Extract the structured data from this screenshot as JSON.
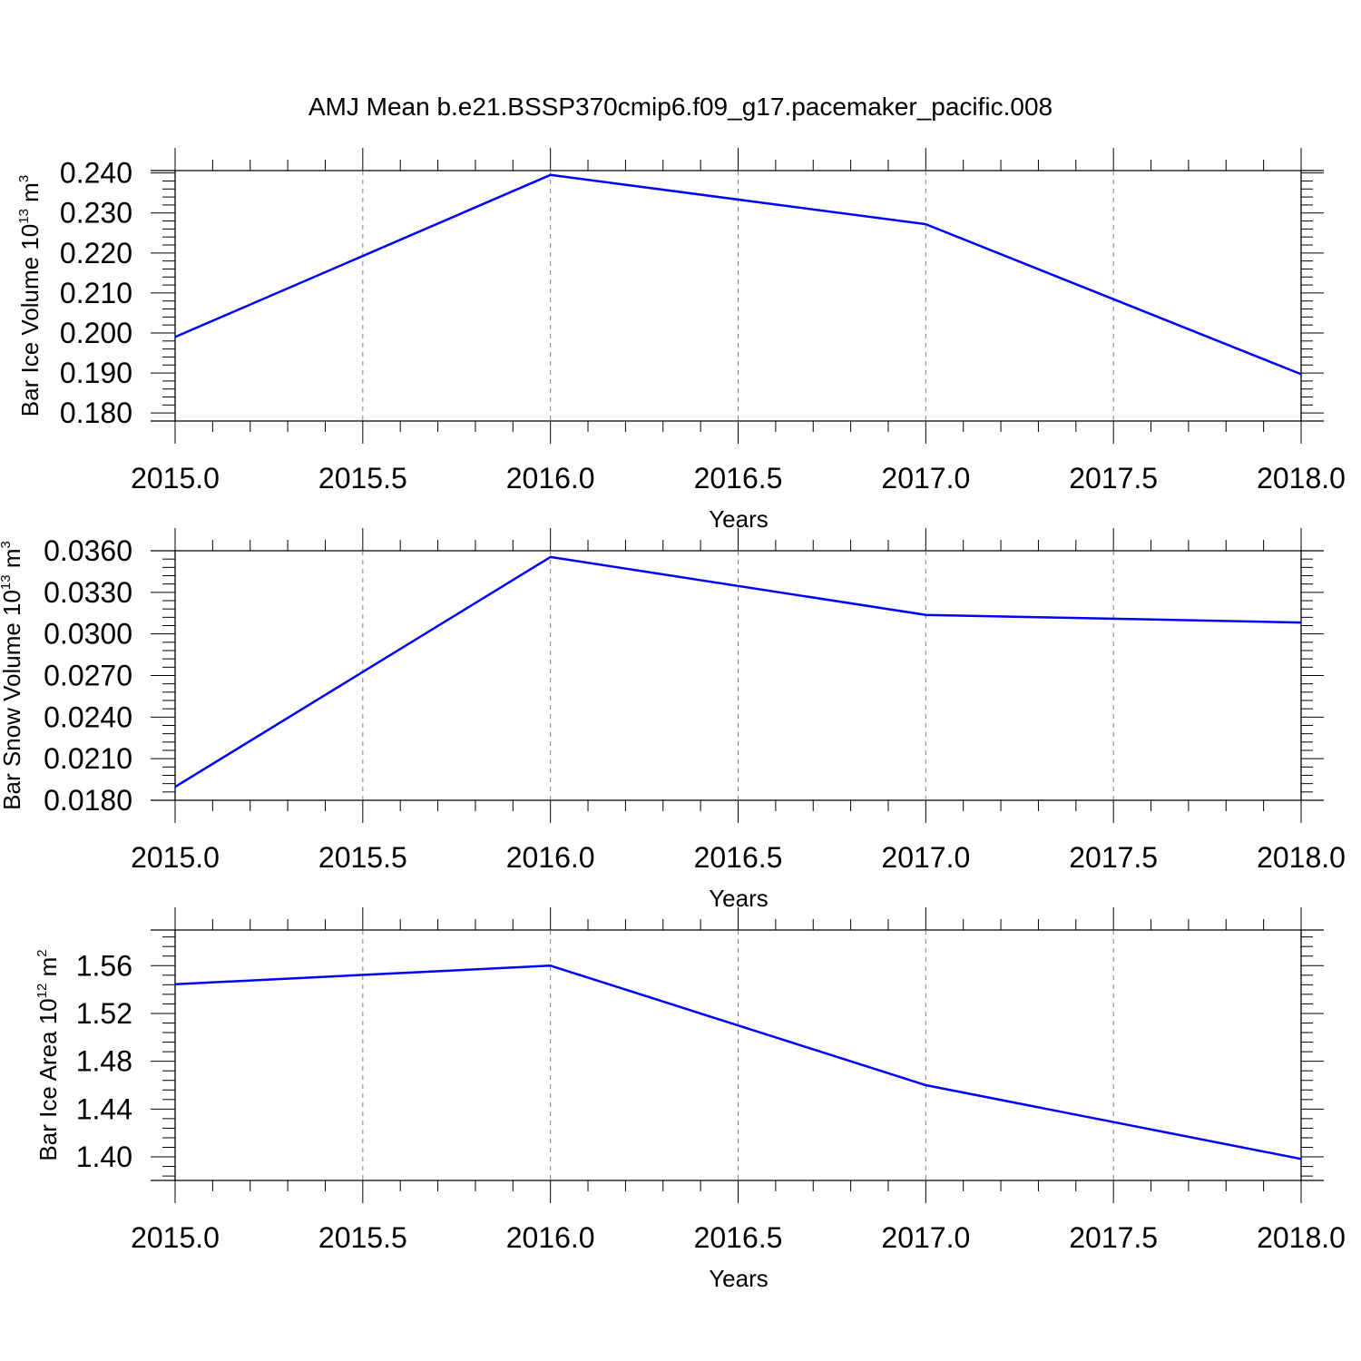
{
  "title": "AMJ Mean b.e21.BSSP370cmip6.f09_g17.pacemaker_pacific.008",
  "colors": {
    "line": "#0000ff",
    "axis": "#000000",
    "grid": "#808080",
    "background": "#ffffff"
  },
  "chart_data": [
    {
      "type": "line",
      "xlabel": "Years",
      "ylabel": {
        "text": "Bar Ice Volume 10",
        "exp": "13",
        "unit": " m",
        "unit_exp": "3"
      },
      "xlim": [
        2015.0,
        2018.0
      ],
      "ylim": [
        0.178,
        0.2406
      ],
      "xticks": [
        "2015.0",
        "2015.5",
        "2016.0",
        "2016.5",
        "2017.0",
        "2017.5",
        "2018.0"
      ],
      "yticks": [
        "0.180",
        "0.190",
        "0.200",
        "0.210",
        "0.220",
        "0.230",
        "0.240"
      ],
      "grid": "vertical dashed at major x ticks",
      "x": [
        2015,
        2016,
        2017,
        2018
      ],
      "series": [
        {
          "values": [
            0.199,
            0.2395,
            0.2272,
            0.1897
          ]
        }
      ]
    },
    {
      "type": "line",
      "xlabel": "Years",
      "ylabel": {
        "text": "Bar Snow Volume 10",
        "exp": "13",
        "unit": " m",
        "unit_exp": "3"
      },
      "xlim": [
        2015.0,
        2018.0
      ],
      "ylim": [
        0.018,
        0.036
      ],
      "xticks": [
        "2015.0",
        "2015.5",
        "2016.0",
        "2016.5",
        "2017.0",
        "2017.5",
        "2018.0"
      ],
      "yticks": [
        "0.0180",
        "0.0210",
        "0.0240",
        "0.0270",
        "0.0300",
        "0.0330",
        "0.0360"
      ],
      "grid": "vertical dashed at major x ticks",
      "x": [
        2015,
        2016,
        2017,
        2018
      ],
      "series": [
        {
          "values": [
            0.01897,
            0.03555,
            0.03137,
            0.03082
          ]
        }
      ]
    },
    {
      "type": "line",
      "xlabel": "Years",
      "ylabel": {
        "text": "Bar Ice Area 10",
        "exp": "12",
        "unit": " m",
        "unit_exp": "2"
      },
      "xlim": [
        2015.0,
        2018.0
      ],
      "ylim": [
        1.3803,
        1.5898
      ],
      "xticks": [
        "2015.0",
        "2015.5",
        "2016.0",
        "2016.5",
        "2017.0",
        "2017.5",
        "2018.0"
      ],
      "yticks": [
        "1.40",
        "1.44",
        "1.48",
        "1.52",
        "1.56"
      ],
      "grid": "vertical dashed at major x ticks",
      "x": [
        2015,
        2016,
        2017,
        2018
      ],
      "series": [
        {
          "values": [
            1.5445,
            1.56,
            1.46,
            1.3983
          ]
        }
      ]
    }
  ]
}
